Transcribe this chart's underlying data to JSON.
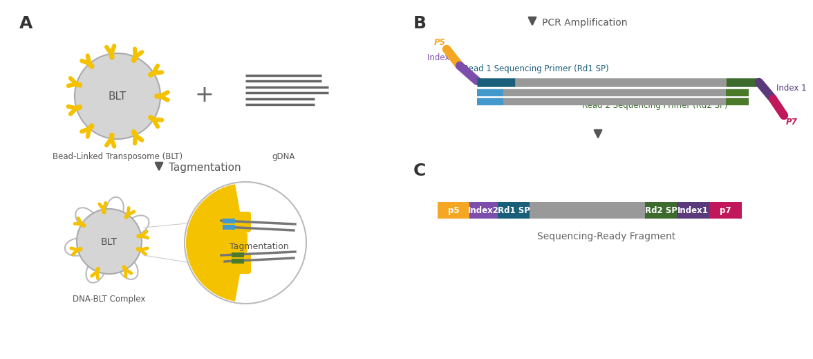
{
  "bg_color": "#ffffff",
  "bead_color": "#d5d5d5",
  "transposome_color": "#f5c200",
  "gdna_line_color": "#555555",
  "arrow_color": "#555555",
  "loop_color": "#aaaaaa",
  "zoom_border": "#cccccc",
  "yellow_fill": "#f5c200",
  "gray_dna": "#888888",
  "p5_color": "#f5a623",
  "index2_color": "#7c4daa",
  "rd1sp_color": "#1a5f7a",
  "insert_color": "#999999",
  "rd2sp_color": "#3d6b2e",
  "index1_color": "#5a3a7a",
  "p7_color": "#c0185a",
  "blue_color": "#4499cc",
  "green_color": "#4a7a2a",
  "texts": {
    "A": "A",
    "B": "B",
    "C": "C",
    "blt": "BLT",
    "blt_caption": "Bead-Linked Transposome (BLT)",
    "gdna": "gDNA",
    "tagmentation": "Tagmentation",
    "dna_blt": "DNA-BLT Complex",
    "tagmentation_zoom": "Tagmentation",
    "pcr": "PCR Amplification",
    "rd1_label": "Read 1 Sequencing Primer (Rd1 SP)",
    "rd2_label": "Read 2 Sequencing Primer (Rd2 SP)",
    "p5": "P5",
    "index2": "Index 2",
    "index1": "Index 1",
    "p7": "P7",
    "p5_bar": "p5",
    "index2_bar": "Index2",
    "rd1sp_bar": "Rd1 SP",
    "rd2sp_bar": "Rd2 SP",
    "index1_bar": "Index1",
    "p7_bar": "p7",
    "seq_ready": "Sequencing-Ready Fragment"
  }
}
